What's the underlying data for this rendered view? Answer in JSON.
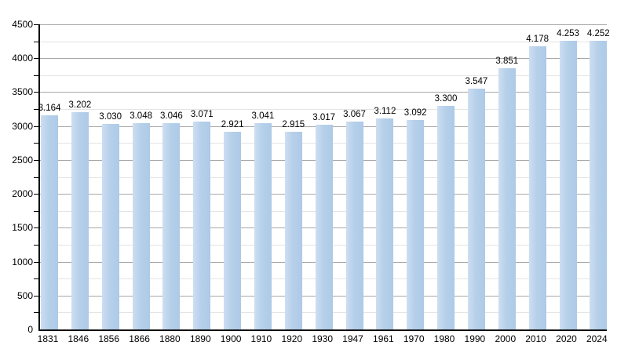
{
  "chart_data": {
    "type": "bar",
    "title": "",
    "xlabel": "",
    "ylabel": "",
    "categories": [
      "1831",
      "1846",
      "1856",
      "1866",
      "1880",
      "1890",
      "1900",
      "1910",
      "1920",
      "1930",
      "1947",
      "1961",
      "1970",
      "1980",
      "1990",
      "2000",
      "2010",
      "2020",
      "2024"
    ],
    "values": [
      3164,
      3202,
      3030,
      3048,
      3046,
      3071,
      2921,
      3041,
      2915,
      3017,
      3067,
      3112,
      3092,
      3300,
      3547,
      3851,
      4178,
      4253,
      4252
    ],
    "value_labels": [
      "3.164",
      "3.202",
      "3.030",
      "3.048",
      "3.046",
      "3.071",
      "2.921",
      "3.041",
      "2.915",
      "3.017",
      "3.067",
      "3.112",
      "3.092",
      "3.300",
      "3.547",
      "3.851",
      "4.178",
      "4.253",
      "4.252"
    ],
    "ylim": [
      0,
      4500
    ],
    "y_major_step": 500,
    "y_minor_step": 250,
    "y_tick_labels": [
      "0",
      "500",
      "1000",
      "1500",
      "2000",
      "2500",
      "3000",
      "3500",
      "4000",
      "4500"
    ],
    "grid": true,
    "legend": false,
    "colors": {
      "bar_fill": "#adcae7",
      "bar_fill_light": "#cddef1",
      "grid_major": "#a8a8a8",
      "grid_minor": "#e4e4e4",
      "axis": "#000000",
      "text": "#000000",
      "background": "#ffffff"
    }
  }
}
